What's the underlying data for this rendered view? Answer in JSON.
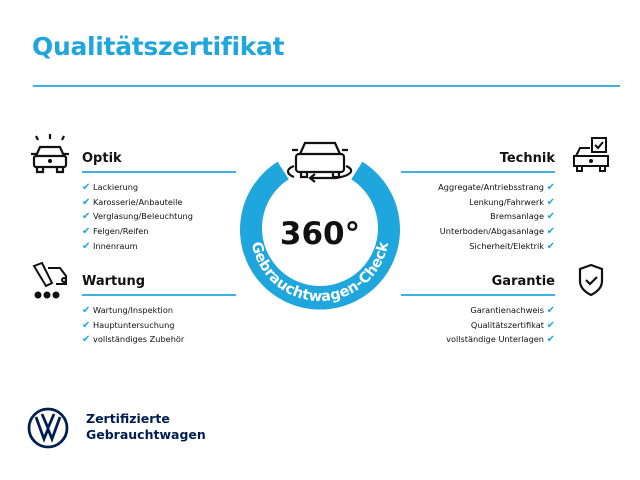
{
  "title": "Qualitätszertifikat",
  "center": {
    "value": "360°",
    "ring_text": "Gebrauchtwagen-Check",
    "color": "#1ea6dd"
  },
  "sections": {
    "optik": {
      "title": "Optik",
      "icon": "car-lights-icon",
      "items": [
        "Lackierung",
        "Karosserie/Anbauteile",
        "Verglasung/Beleuchtung",
        "Felgen/Reifen",
        "Innenraum"
      ]
    },
    "wartung": {
      "title": "Wartung",
      "icon": "maintenance-car-icon",
      "items": [
        "Wartung/Inspektion",
        "Hauptuntersuchung",
        "vollständiges Zubehör"
      ]
    },
    "technik": {
      "title": "Technik",
      "icon": "car-checkbox-icon",
      "items": [
        "Aggregate/Antriebsstrang",
        "Lenkung/Fahrwerk",
        "Bremsanlage",
        "Unterboden/Abgasanlage",
        "Sicherheit/Elektrik"
      ]
    },
    "garantie": {
      "title": "Garantie",
      "icon": "shield-check-icon",
      "items": [
        "Garantienachweis",
        "Qualitätszertifikat",
        "vollständige Unterlagen"
      ]
    }
  },
  "check_mark": "✔",
  "footer": {
    "line1": "Zertifizierte",
    "line2": "Gebrauchtwagen",
    "logo": "vw-logo"
  }
}
